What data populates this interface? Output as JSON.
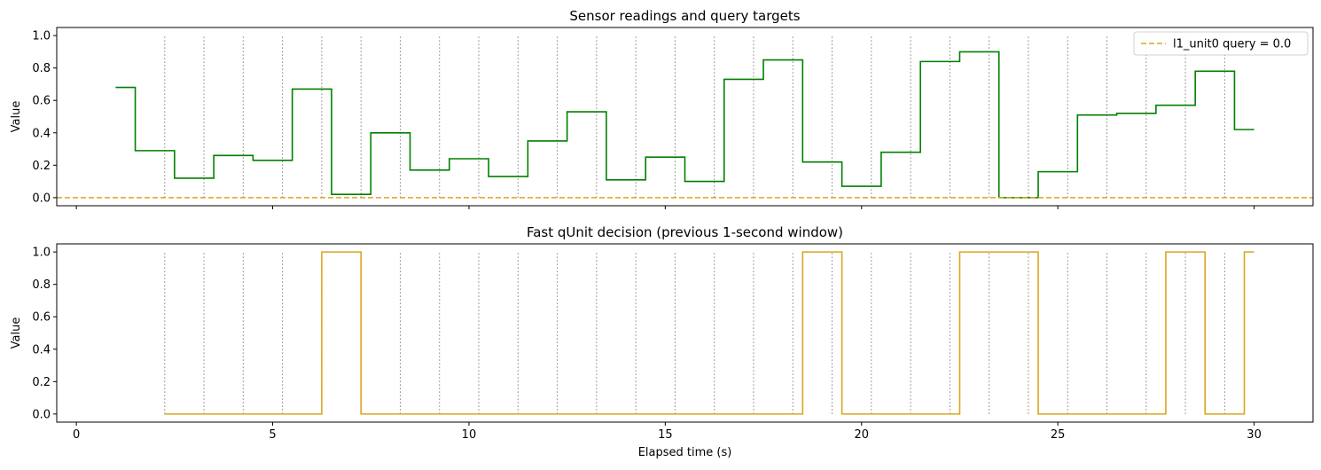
{
  "chart_data": [
    {
      "type": "line",
      "step": "post",
      "title": "Sensor readings and query targets",
      "xlabel": "",
      "ylabel": "Value",
      "xlim": [
        -0.5,
        31.5
      ],
      "ylim": [
        -0.05,
        1.05
      ],
      "xticks": [
        0,
        5,
        10,
        15,
        20,
        25,
        30
      ],
      "xtick_labels_visible": false,
      "yticks": [
        0.0,
        0.2,
        0.4,
        0.6,
        0.8,
        1.0
      ],
      "ytick_labels": [
        "0.0",
        "0.2",
        "0.4",
        "0.6",
        "0.8",
        "1.0"
      ],
      "vlines": [
        2.25,
        3.25,
        4.25,
        5.25,
        6.25,
        7.25,
        8.25,
        9.25,
        10.25,
        11.25,
        12.25,
        13.25,
        14.25,
        15.25,
        16.25,
        17.25,
        18.25,
        19.25,
        20.25,
        21.25,
        22.25,
        23.25,
        24.25,
        25.25,
        26.25,
        27.25,
        28.25,
        29.25
      ],
      "vline_range": [
        0.0,
        1.0
      ],
      "legend_position": "top-right",
      "series": [
        {
          "name": "",
          "color": "#008000",
          "x": [
            1.0,
            1.5,
            2.5,
            3.5,
            4.5,
            5.5,
            6.5,
            7.5,
            8.5,
            9.5,
            10.5,
            11.5,
            12.5,
            13.5,
            14.5,
            15.5,
            16.5,
            17.5,
            18.5,
            19.5,
            20.5,
            21.5,
            22.5,
            23.5,
            24.5,
            25.5,
            26.5,
            27.5,
            28.5,
            29.5,
            30.0
          ],
          "y": [
            0.68,
            0.29,
            0.12,
            0.26,
            0.23,
            0.67,
            0.02,
            0.4,
            0.17,
            0.24,
            0.13,
            0.35,
            0.53,
            0.11,
            0.25,
            0.1,
            0.73,
            0.85,
            0.22,
            0.07,
            0.28,
            0.84,
            0.9,
            0.0,
            0.16,
            0.51,
            0.52,
            0.57,
            0.78,
            0.42,
            0.42
          ]
        },
        {
          "name": "l1_unit0 query = 0.0",
          "color": "#DAA520",
          "style": "dashed",
          "hline": 0.0
        }
      ]
    },
    {
      "type": "line",
      "step": "post",
      "title": "Fast qUnit decision (previous 1-second window)",
      "xlabel": "Elapsed time (s)",
      "ylabel": "Value",
      "xlim": [
        -0.5,
        31.5
      ],
      "ylim": [
        -0.05,
        1.05
      ],
      "xticks": [
        0,
        5,
        10,
        15,
        20,
        25,
        30
      ],
      "xtick_labels": [
        "0",
        "5",
        "10",
        "15",
        "20",
        "25",
        "30"
      ],
      "yticks": [
        0.0,
        0.2,
        0.4,
        0.6,
        0.8,
        1.0
      ],
      "ytick_labels": [
        "0.0",
        "0.2",
        "0.4",
        "0.6",
        "0.8",
        "1.0"
      ],
      "vlines": [
        2.25,
        3.25,
        4.25,
        5.25,
        6.25,
        7.25,
        8.25,
        9.25,
        10.25,
        11.25,
        12.25,
        13.25,
        14.25,
        15.25,
        16.25,
        17.25,
        18.25,
        19.25,
        20.25,
        21.25,
        22.25,
        23.25,
        24.25,
        25.25,
        26.25,
        27.25,
        28.25,
        29.25
      ],
      "vline_range": [
        0.0,
        1.0
      ],
      "series": [
        {
          "name": "",
          "color": "#DAA520",
          "x": [
            2.25,
            6.25,
            7.25,
            18.5,
            19.5,
            22.5,
            24.5,
            27.75,
            28.75,
            29.75,
            30.0
          ],
          "y": [
            0,
            1,
            0,
            1,
            0,
            1,
            0,
            1,
            0,
            1,
            1
          ]
        }
      ]
    }
  ]
}
